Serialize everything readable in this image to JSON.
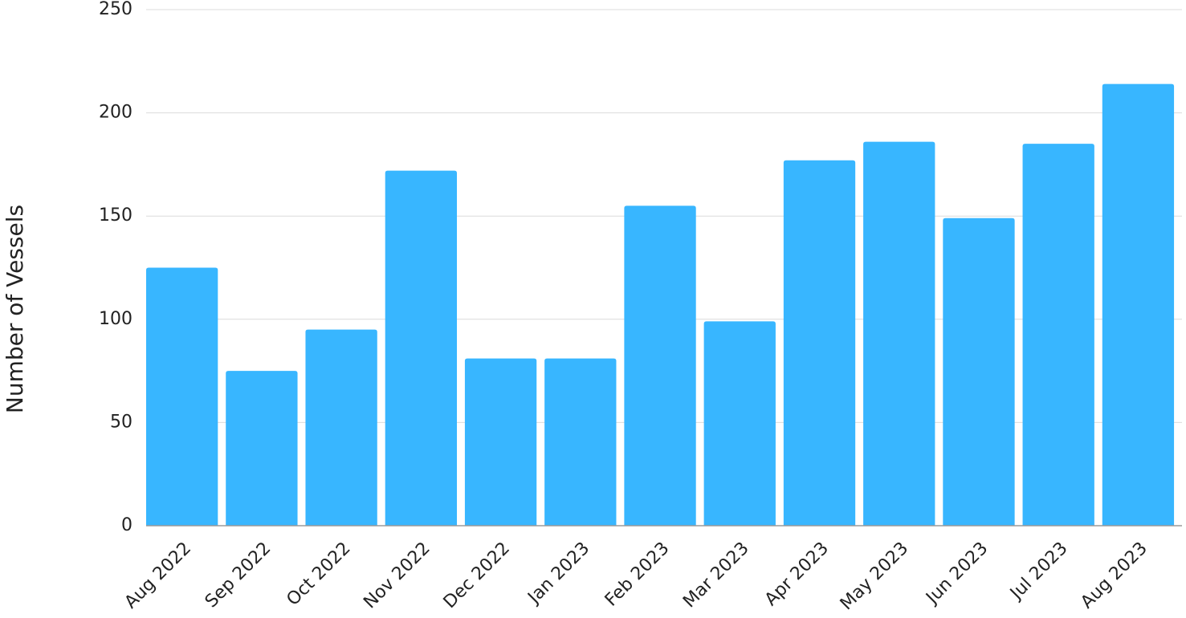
{
  "chart_data": {
    "type": "bar",
    "y_label": "Number of Vessels",
    "categories": [
      "Aug 2022",
      "Sep 2022",
      "Oct 2022",
      "Nov 2022",
      "Dec 2022",
      "Jan 2023",
      "Feb 2023",
      "Mar 2023",
      "Apr 2023",
      "May 2023",
      "Jun 2023",
      "Jul 2023",
      "Aug 2023"
    ],
    "values": [
      125,
      75,
      95,
      172,
      81,
      81,
      155,
      99,
      177,
      186,
      149,
      185,
      214
    ],
    "color": "#38b6ff",
    "ylim": [
      0,
      250
    ],
    "yticks": [
      0,
      50,
      100,
      150,
      200,
      250
    ],
    "grid": true
  }
}
